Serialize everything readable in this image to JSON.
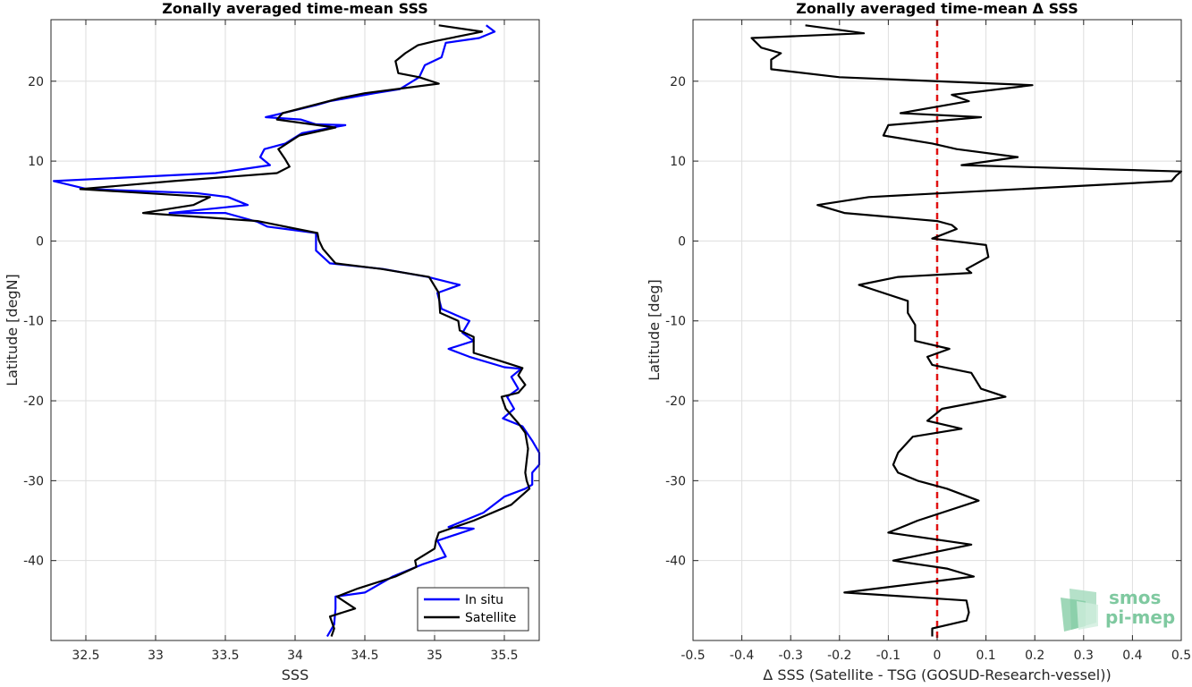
{
  "chart_data": [
    {
      "type": "line",
      "title": "Zonally averaged time-mean SSS",
      "xlabel": "SSS",
      "ylabel": "Latitude [degN]",
      "xlim": [
        32.25,
        35.75
      ],
      "ylim": [
        -50,
        27.7
      ],
      "grid": true,
      "legend_position": "bottom-right",
      "xticks": [
        32.5,
        33,
        33.5,
        34,
        34.5,
        35,
        35.5
      ],
      "xtick_labels": [
        "32.5",
        "33",
        "33.5",
        "34",
        "34.5",
        "35",
        "35.5"
      ],
      "yticks": [
        -40,
        -30,
        -20,
        -10,
        0,
        10,
        20
      ],
      "ytick_labels": [
        "-40",
        "-30",
        "-20",
        "-10",
        "0",
        "10",
        "20"
      ],
      "series": [
        {
          "name": "In situ",
          "color": "#0000ff",
          "points": [
            [
              35.37,
              27.0
            ],
            [
              35.43,
              26.2
            ],
            [
              35.32,
              25.4
            ],
            [
              35.08,
              24.8
            ],
            [
              35.05,
              23.0
            ],
            [
              34.93,
              22.0
            ],
            [
              34.89,
              20.5
            ],
            [
              34.75,
              19.0
            ],
            [
              34.57,
              18.5
            ],
            [
              34.25,
              17.5
            ],
            [
              34.15,
              17.0
            ],
            [
              33.96,
              16.2
            ],
            [
              33.79,
              15.5
            ],
            [
              34.04,
              15.2
            ],
            [
              34.15,
              14.6
            ],
            [
              34.36,
              14.5
            ],
            [
              34.05,
              13.5
            ],
            [
              33.93,
              12.2
            ],
            [
              33.78,
              11.5
            ],
            [
              33.75,
              10.5
            ],
            [
              33.82,
              9.5
            ],
            [
              33.43,
              8.5
            ],
            [
              32.27,
              7.5
            ],
            [
              32.51,
              6.5
            ],
            [
              33.29,
              6.0
            ],
            [
              33.52,
              5.5
            ],
            [
              33.66,
              4.5
            ],
            [
              33.1,
              3.5
            ],
            [
              33.5,
              3.5
            ],
            [
              33.73,
              2.4
            ],
            [
              33.8,
              1.8
            ],
            [
              34.15,
              1.0
            ],
            [
              34.15,
              -1.2
            ],
            [
              34.25,
              -2.8
            ],
            [
              34.63,
              -3.5
            ],
            [
              34.95,
              -4.5
            ],
            [
              35.18,
              -5.5
            ],
            [
              35.02,
              -6.5
            ],
            [
              35.05,
              -8.5
            ],
            [
              35.25,
              -10.0
            ],
            [
              35.2,
              -11.5
            ],
            [
              35.28,
              -12.5
            ],
            [
              35.1,
              -13.5
            ],
            [
              35.25,
              -14.5
            ],
            [
              35.5,
              -15.8
            ],
            [
              35.62,
              -16.0
            ],
            [
              35.55,
              -17.0
            ],
            [
              35.6,
              -18.5
            ],
            [
              35.52,
              -19.5
            ],
            [
              35.57,
              -21.0
            ],
            [
              35.49,
              -22.2
            ],
            [
              35.63,
              -23.2
            ],
            [
              35.7,
              -25.0
            ],
            [
              35.75,
              -26.5
            ],
            [
              35.75,
              -28.0
            ],
            [
              35.7,
              -29.0
            ],
            [
              35.7,
              -30.5
            ],
            [
              35.65,
              -31.0
            ],
            [
              35.5,
              -32.0
            ],
            [
              35.35,
              -34.0
            ],
            [
              35.1,
              -35.8
            ],
            [
              35.28,
              -36.0
            ],
            [
              35.02,
              -37.5
            ],
            [
              35.08,
              -39.5
            ],
            [
              34.91,
              -40.5
            ],
            [
              34.7,
              -42.0
            ],
            [
              34.5,
              -44.0
            ],
            [
              34.29,
              -44.5
            ],
            [
              34.29,
              -46.0
            ],
            [
              34.28,
              -48.0
            ],
            [
              34.23,
              -49.5
            ]
          ]
        },
        {
          "name": "Satellite",
          "color": "#000000",
          "points": [
            [
              35.03,
              27.0
            ],
            [
              35.34,
              26.2
            ],
            [
              35.0,
              25.0
            ],
            [
              34.88,
              24.5
            ],
            [
              34.79,
              23.5
            ],
            [
              34.72,
              22.5
            ],
            [
              34.74,
              21.0
            ],
            [
              34.89,
              20.5
            ],
            [
              35.03,
              19.7
            ],
            [
              34.5,
              18.5
            ],
            [
              34.33,
              17.9
            ],
            [
              34.13,
              17.0
            ],
            [
              33.91,
              16.0
            ],
            [
              33.87,
              15.2
            ],
            [
              34.29,
              14.2
            ],
            [
              34.03,
              13.2
            ],
            [
              33.88,
              11.5
            ],
            [
              33.93,
              10.2
            ],
            [
              33.96,
              9.3
            ],
            [
              33.87,
              8.5
            ],
            [
              33.13,
              7.5
            ],
            [
              32.46,
              6.5
            ],
            [
              33.39,
              5.5
            ],
            [
              33.27,
              4.5
            ],
            [
              32.91,
              3.5
            ],
            [
              33.73,
              2.5
            ],
            [
              34.16,
              1.0
            ],
            [
              34.17,
              0.1
            ],
            [
              34.2,
              -1.0
            ],
            [
              34.29,
              -2.8
            ],
            [
              34.62,
              -3.5
            ],
            [
              34.96,
              -4.5
            ],
            [
              35.03,
              -6.5
            ],
            [
              35.04,
              -9.0
            ],
            [
              35.17,
              -10.0
            ],
            [
              35.18,
              -11.2
            ],
            [
              35.28,
              -12.0
            ],
            [
              35.28,
              -14.0
            ],
            [
              35.47,
              -15.0
            ],
            [
              35.63,
              -15.9
            ],
            [
              35.6,
              -16.8
            ],
            [
              35.65,
              -18.0
            ],
            [
              35.6,
              -19.0
            ],
            [
              35.48,
              -19.5
            ],
            [
              35.51,
              -21.0
            ],
            [
              35.6,
              -22.8
            ],
            [
              35.65,
              -24.0
            ],
            [
              35.67,
              -26.0
            ],
            [
              35.65,
              -29.0
            ],
            [
              35.66,
              -30.0
            ],
            [
              35.68,
              -31.0
            ],
            [
              35.55,
              -33.0
            ],
            [
              35.28,
              -35.0
            ],
            [
              35.03,
              -36.5
            ],
            [
              35.01,
              -37.5
            ],
            [
              35.0,
              -38.5
            ],
            [
              34.86,
              -40.0
            ],
            [
              34.87,
              -40.8
            ],
            [
              34.72,
              -42.0
            ],
            [
              34.45,
              -43.5
            ],
            [
              34.3,
              -44.5
            ],
            [
              34.43,
              -46.0
            ],
            [
              34.25,
              -47.0
            ],
            [
              34.28,
              -48.5
            ],
            [
              34.26,
              -49.5
            ]
          ]
        }
      ]
    },
    {
      "type": "line",
      "title": "Zonally averaged time-mean Δ SSS",
      "xlabel": "Δ SSS (Satellite - TSG (GOSUD-Research-vessel))",
      "ylabel": "Latitude [deg]",
      "xlim": [
        -0.5,
        0.5
      ],
      "ylim": [
        -50,
        27.7
      ],
      "grid": true,
      "reference_line": {
        "x": 0,
        "color": "#e01010",
        "style": "dashed"
      },
      "xticks": [
        -0.5,
        -0.4,
        -0.3,
        -0.2,
        -0.1,
        0,
        0.1,
        0.2,
        0.3,
        0.4,
        0.5
      ],
      "xtick_labels": [
        "-0.5",
        "-0.4",
        "-0.3",
        "-0.2",
        "-0.1",
        "0",
        "0.1",
        "0.2",
        "0.3",
        "0.4",
        "0.5"
      ],
      "yticks": [
        -40,
        -30,
        -20,
        -10,
        0,
        10,
        20
      ],
      "ytick_labels": [
        "-40",
        "-30",
        "-20",
        "-10",
        "0",
        "10",
        "20"
      ],
      "series": [
        {
          "color": "#000000",
          "points": [
            [
              -0.27,
              27.0
            ],
            [
              -0.15,
              26.0
            ],
            [
              -0.38,
              25.4
            ],
            [
              -0.36,
              24.2
            ],
            [
              -0.32,
              23.5
            ],
            [
              -0.34,
              22.7
            ],
            [
              -0.34,
              21.5
            ],
            [
              -0.2,
              20.5
            ],
            [
              0.195,
              19.5
            ],
            [
              0.03,
              18.3
            ],
            [
              0.065,
              17.5
            ],
            [
              -0.075,
              16.0
            ],
            [
              0.09,
              15.5
            ],
            [
              -0.1,
              14.5
            ],
            [
              -0.11,
              13.2
            ],
            [
              -0.01,
              12.2
            ],
            [
              0.04,
              11.5
            ],
            [
              0.165,
              10.5
            ],
            [
              0.05,
              9.5
            ],
            [
              0.5,
              8.7
            ],
            [
              0.49,
              8.2
            ],
            [
              0.48,
              7.5
            ],
            [
              -0.14,
              5.5
            ],
            [
              -0.245,
              4.5
            ],
            [
              -0.19,
              3.5
            ],
            [
              0.0,
              2.5
            ],
            [
              0.03,
              2.0
            ],
            [
              0.04,
              1.5
            ],
            [
              -0.01,
              0.3
            ],
            [
              0.1,
              -0.5
            ],
            [
              0.105,
              -2.0
            ],
            [
              0.06,
              -3.5
            ],
            [
              0.07,
              -4.0
            ],
            [
              -0.08,
              -4.5
            ],
            [
              -0.16,
              -5.5
            ],
            [
              -0.06,
              -7.5
            ],
            [
              -0.06,
              -9.0
            ],
            [
              -0.045,
              -10.5
            ],
            [
              -0.045,
              -12.5
            ],
            [
              0.025,
              -13.5
            ],
            [
              -0.02,
              -14.5
            ],
            [
              -0.01,
              -15.5
            ],
            [
              0.07,
              -16.5
            ],
            [
              0.09,
              -18.5
            ],
            [
              0.14,
              -19.5
            ],
            [
              0.01,
              -21.0
            ],
            [
              -0.02,
              -22.5
            ],
            [
              0.05,
              -23.5
            ],
            [
              -0.05,
              -24.5
            ],
            [
              -0.08,
              -26.5
            ],
            [
              -0.09,
              -28.0
            ],
            [
              -0.08,
              -29.0
            ],
            [
              -0.04,
              -30.0
            ],
            [
              0.02,
              -31.0
            ],
            [
              0.085,
              -32.5
            ],
            [
              -0.04,
              -35.0
            ],
            [
              -0.1,
              -36.5
            ],
            [
              0.07,
              -38.0
            ],
            [
              -0.09,
              -40.0
            ],
            [
              0.02,
              -41.0
            ],
            [
              0.075,
              -42.0
            ],
            [
              -0.19,
              -44.0
            ],
            [
              0.06,
              -45.0
            ],
            [
              0.065,
              -46.5
            ],
            [
              0.06,
              -47.5
            ],
            [
              -0.01,
              -48.5
            ],
            [
              -0.01,
              -49.5
            ]
          ]
        }
      ]
    }
  ],
  "legend": {
    "items": [
      {
        "label": "In situ",
        "color": "#0000ff"
      },
      {
        "label": "Satellite",
        "color": "#000000"
      }
    ]
  },
  "logo": {
    "line1": "smos",
    "line2": "pi-mep",
    "color": "#7fc9a0"
  }
}
